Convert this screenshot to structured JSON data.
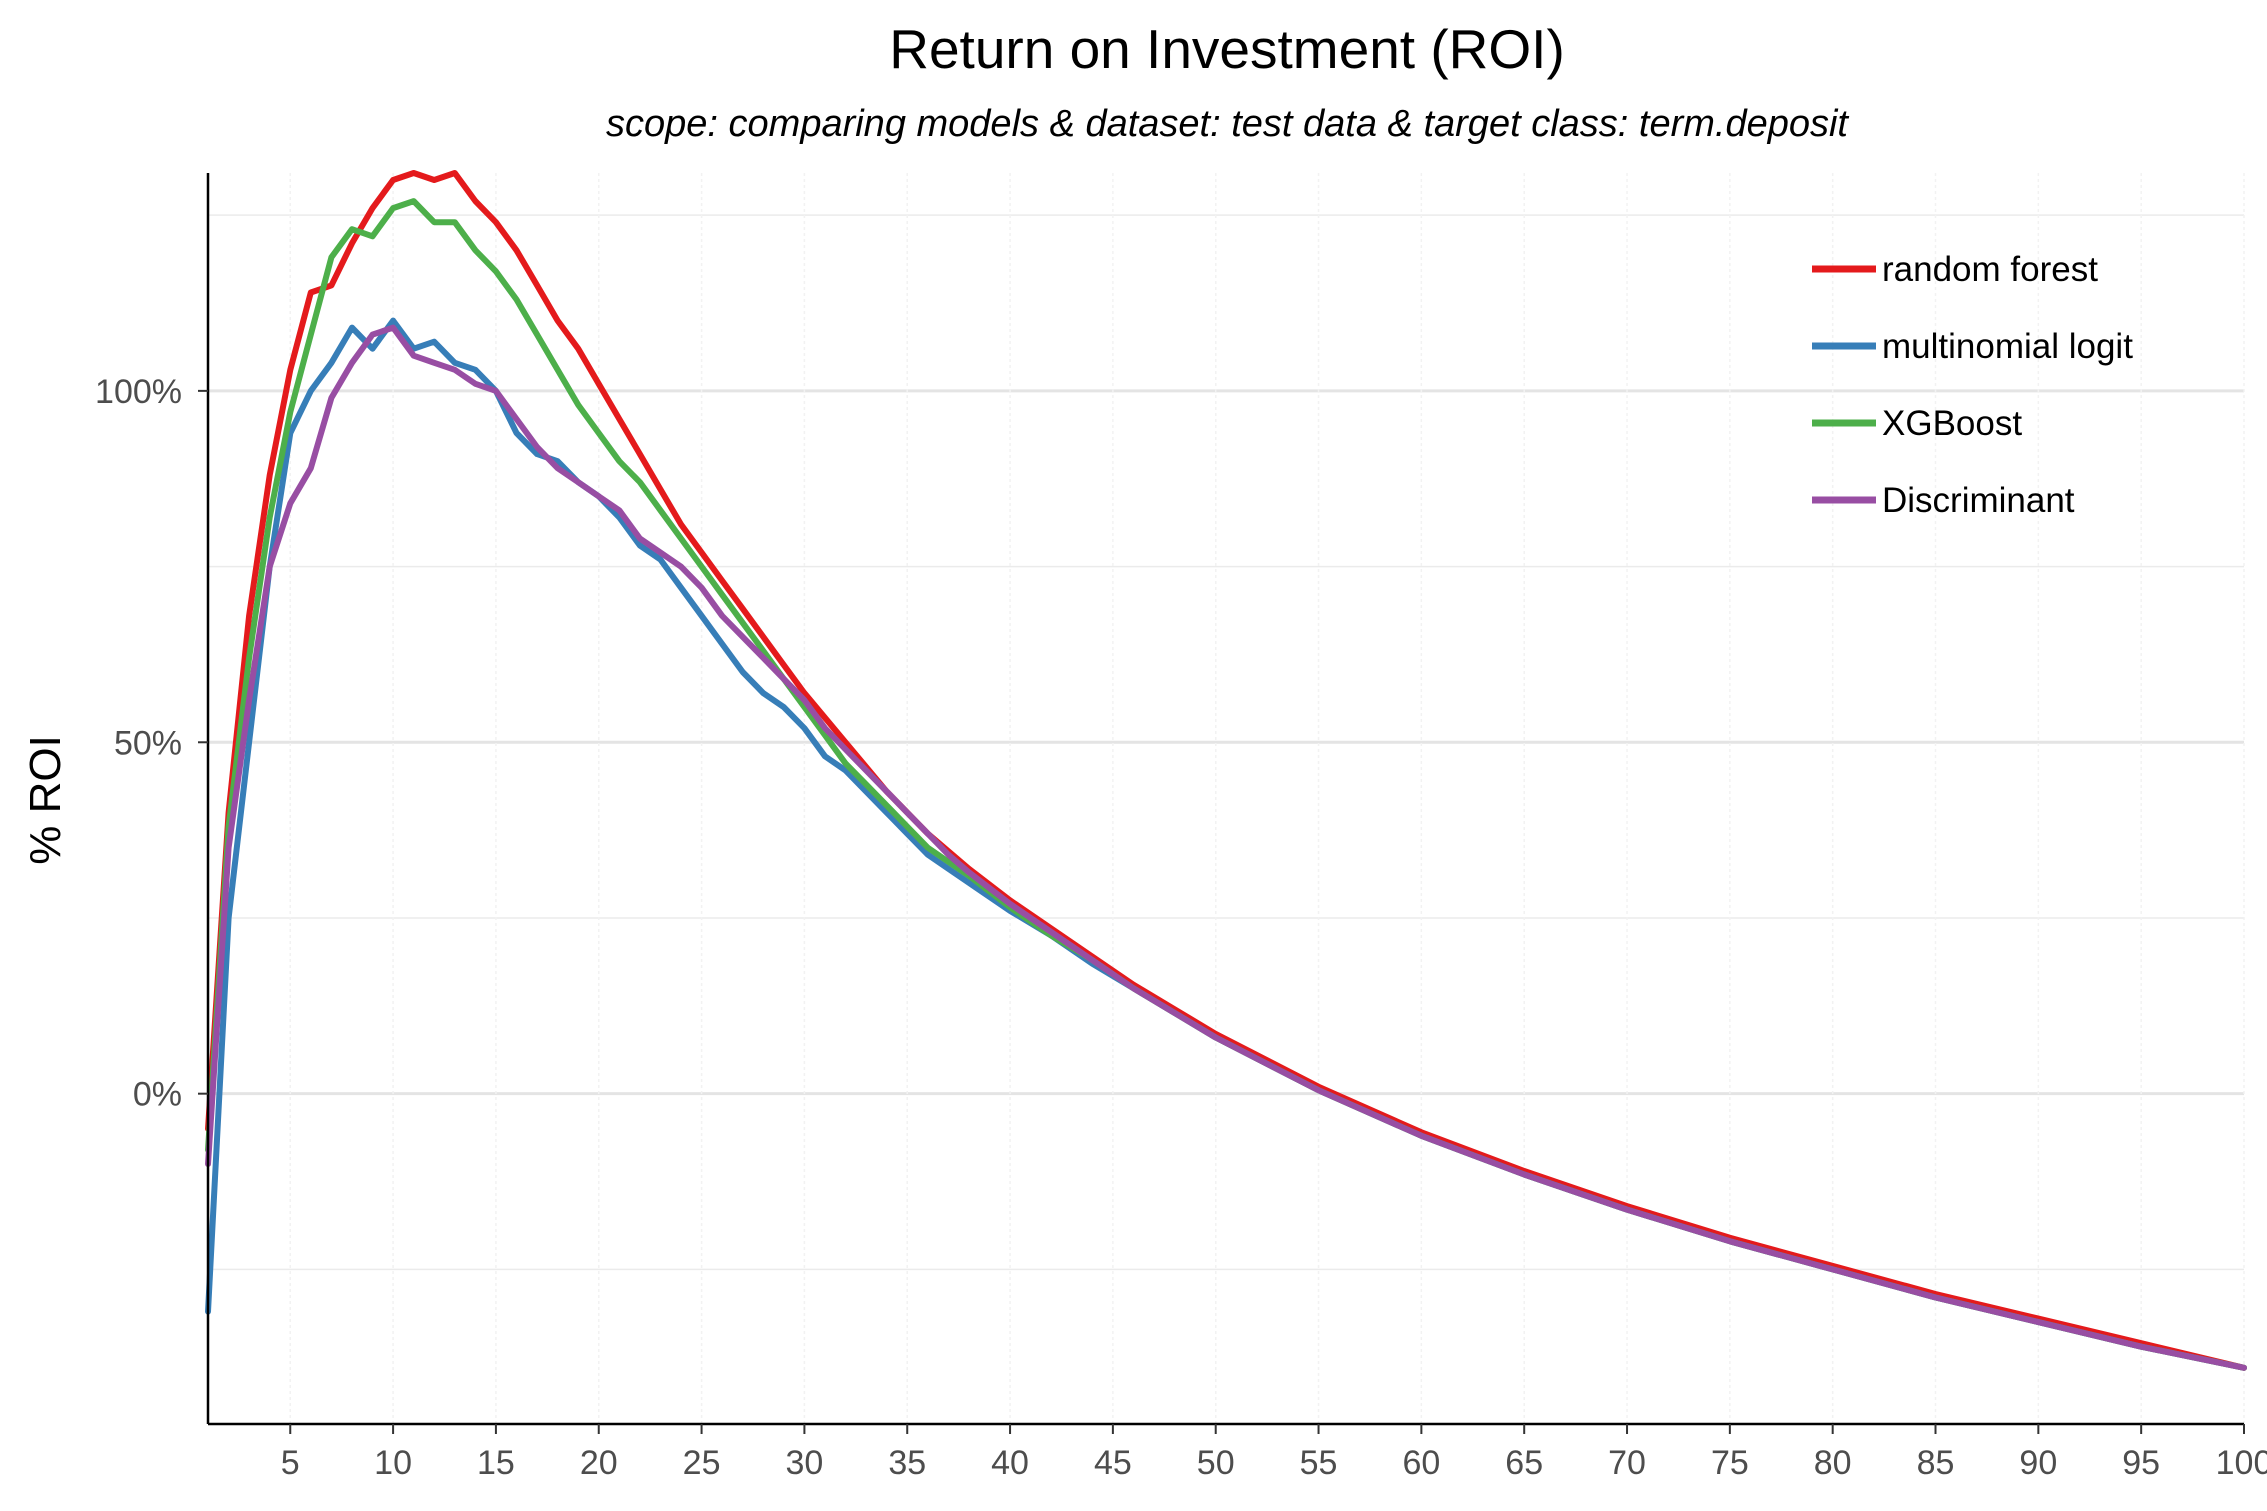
{
  "chart_data": {
    "type": "line",
    "title": "Return on Investment (ROI)",
    "subtitle": "scope: comparing models & dataset: test data & target class: term.deposit",
    "xlabel": "",
    "ylabel": "% ROI",
    "xlim": [
      1,
      100
    ],
    "ylim": [
      -47,
      131
    ],
    "x_ticks": [
      5,
      10,
      15,
      20,
      25,
      30,
      35,
      40,
      45,
      50,
      55,
      60,
      65,
      70,
      75,
      80,
      85,
      90,
      95,
      100
    ],
    "x_tick_labels": [
      "5",
      "10",
      "15",
      "20",
      "25",
      "30",
      "35",
      "40",
      "45",
      "50",
      "55",
      "60",
      "65",
      "70",
      "75",
      "80",
      "85",
      "90",
      "95",
      "100"
    ],
    "y_ticks": [
      0,
      50,
      100
    ],
    "y_tick_labels": [
      "0%",
      "50%",
      "100%"
    ],
    "y_minor_ticks": [
      -25,
      25,
      75,
      125
    ],
    "grid": true,
    "legend_position": "top-right",
    "series": [
      {
        "name": "random forest",
        "color": "#E41A1C",
        "points": [
          [
            1,
            -5
          ],
          [
            2,
            40
          ],
          [
            3,
            68
          ],
          [
            4,
            88
          ],
          [
            5,
            103
          ],
          [
            6,
            114
          ],
          [
            7,
            115
          ],
          [
            8,
            121
          ],
          [
            9,
            126
          ],
          [
            10,
            130
          ],
          [
            11,
            131
          ],
          [
            12,
            130
          ],
          [
            13,
            131
          ],
          [
            14,
            127
          ],
          [
            15,
            124
          ],
          [
            16,
            120
          ],
          [
            17,
            115
          ],
          [
            18,
            110
          ],
          [
            19,
            106
          ],
          [
            20,
            101
          ],
          [
            21,
            96
          ],
          [
            22,
            91
          ],
          [
            23,
            86
          ],
          [
            24,
            81
          ],
          [
            25,
            77
          ],
          [
            26,
            73
          ],
          [
            27,
            69
          ],
          [
            28,
            65
          ],
          [
            29,
            61
          ],
          [
            30,
            57
          ],
          [
            32,
            50
          ],
          [
            34,
            43
          ],
          [
            36,
            37
          ],
          [
            38,
            32
          ],
          [
            40,
            27.5
          ],
          [
            42,
            23.5
          ],
          [
            44,
            19.5
          ],
          [
            46,
            15.5
          ],
          [
            48,
            12
          ],
          [
            50,
            8.5
          ],
          [
            55,
            1
          ],
          [
            60,
            -5.5
          ],
          [
            65,
            -11
          ],
          [
            70,
            -16
          ],
          [
            75,
            -20.5
          ],
          [
            80,
            -24.5
          ],
          [
            85,
            -28.5
          ],
          [
            90,
            -32
          ],
          [
            95,
            -35.5
          ],
          [
            100,
            -39
          ]
        ]
      },
      {
        "name": "multinomial logit",
        "color": "#377EB8",
        "points": [
          [
            1,
            -31
          ],
          [
            2,
            25
          ],
          [
            3,
            50
          ],
          [
            4,
            75
          ],
          [
            5,
            94
          ],
          [
            6,
            100
          ],
          [
            7,
            104
          ],
          [
            8,
            109
          ],
          [
            9,
            106
          ],
          [
            10,
            110
          ],
          [
            11,
            106
          ],
          [
            12,
            107
          ],
          [
            13,
            104
          ],
          [
            14,
            103
          ],
          [
            15,
            100
          ],
          [
            16,
            94
          ],
          [
            17,
            91
          ],
          [
            18,
            90
          ],
          [
            19,
            87
          ],
          [
            20,
            85
          ],
          [
            21,
            82
          ],
          [
            22,
            78
          ],
          [
            23,
            76
          ],
          [
            24,
            72
          ],
          [
            25,
            68
          ],
          [
            26,
            64
          ],
          [
            27,
            60
          ],
          [
            28,
            57
          ],
          [
            29,
            55
          ],
          [
            30,
            52
          ],
          [
            31,
            48
          ],
          [
            32,
            46
          ],
          [
            33,
            43
          ],
          [
            34,
            40
          ],
          [
            35,
            37
          ],
          [
            36,
            34
          ],
          [
            37,
            32
          ],
          [
            38,
            30
          ],
          [
            40,
            26
          ],
          [
            42,
            22.5
          ],
          [
            44,
            18.5
          ],
          [
            46,
            15
          ],
          [
            48,
            11.5
          ],
          [
            50,
            8
          ],
          [
            55,
            0.5
          ],
          [
            60,
            -6
          ],
          [
            65,
            -11.5
          ],
          [
            70,
            -16.5
          ],
          [
            75,
            -21
          ],
          [
            80,
            -25
          ],
          [
            85,
            -29
          ],
          [
            90,
            -32.5
          ],
          [
            95,
            -36
          ],
          [
            100,
            -39
          ]
        ]
      },
      {
        "name": "XGBoost",
        "color": "#4DAF4A",
        "points": [
          [
            1,
            -8
          ],
          [
            2,
            38
          ],
          [
            3,
            62
          ],
          [
            4,
            82
          ],
          [
            5,
            97
          ],
          [
            6,
            108
          ],
          [
            7,
            119
          ],
          [
            8,
            123
          ],
          [
            9,
            122
          ],
          [
            10,
            126
          ],
          [
            11,
            127
          ],
          [
            12,
            124
          ],
          [
            13,
            124
          ],
          [
            14,
            120
          ],
          [
            15,
            117
          ],
          [
            16,
            113
          ],
          [
            17,
            108
          ],
          [
            18,
            103
          ],
          [
            19,
            98
          ],
          [
            20,
            94
          ],
          [
            21,
            90
          ],
          [
            22,
            87
          ],
          [
            23,
            83
          ],
          [
            24,
            79
          ],
          [
            25,
            75
          ],
          [
            26,
            71
          ],
          [
            27,
            67
          ],
          [
            28,
            63
          ],
          [
            29,
            59
          ],
          [
            30,
            55
          ],
          [
            31,
            51
          ],
          [
            32,
            47
          ],
          [
            33,
            44
          ],
          [
            34,
            41
          ],
          [
            35,
            38
          ],
          [
            36,
            35
          ],
          [
            37,
            33
          ],
          [
            38,
            31
          ],
          [
            40,
            26.5
          ],
          [
            42,
            22.5
          ],
          [
            44,
            19
          ],
          [
            46,
            15
          ],
          [
            48,
            11.5
          ],
          [
            50,
            8
          ],
          [
            55,
            0.5
          ],
          [
            60,
            -6
          ],
          [
            65,
            -11.5
          ],
          [
            70,
            -16.5
          ],
          [
            75,
            -21
          ],
          [
            80,
            -25
          ],
          [
            85,
            -29
          ],
          [
            90,
            -32.5
          ],
          [
            95,
            -36
          ],
          [
            100,
            -39
          ]
        ]
      },
      {
        "name": "Discriminant",
        "color": "#984EA3",
        "points": [
          [
            1,
            -10
          ],
          [
            2,
            35
          ],
          [
            3,
            56
          ],
          [
            4,
            75
          ],
          [
            5,
            84
          ],
          [
            6,
            89
          ],
          [
            7,
            99
          ],
          [
            8,
            104
          ],
          [
            9,
            108
          ],
          [
            10,
            109
          ],
          [
            11,
            105
          ],
          [
            12,
            104
          ],
          [
            13,
            103
          ],
          [
            14,
            101
          ],
          [
            15,
            100
          ],
          [
            16,
            96
          ],
          [
            17,
            92
          ],
          [
            18,
            89
          ],
          [
            19,
            87
          ],
          [
            20,
            85
          ],
          [
            21,
            83
          ],
          [
            22,
            79
          ],
          [
            23,
            77
          ],
          [
            24,
            75
          ],
          [
            25,
            72
          ],
          [
            26,
            68
          ],
          [
            27,
            65
          ],
          [
            28,
            62
          ],
          [
            29,
            59
          ],
          [
            30,
            56
          ],
          [
            31,
            52
          ],
          [
            32,
            49
          ],
          [
            33,
            46
          ],
          [
            34,
            43
          ],
          [
            35,
            40
          ],
          [
            36,
            37
          ],
          [
            37,
            34
          ],
          [
            38,
            31.5
          ],
          [
            40,
            27
          ],
          [
            42,
            23
          ],
          [
            44,
            19
          ],
          [
            46,
            15
          ],
          [
            48,
            11.5
          ],
          [
            50,
            8
          ],
          [
            55,
            0.5
          ],
          [
            60,
            -6
          ],
          [
            65,
            -11.5
          ],
          [
            70,
            -16.5
          ],
          [
            75,
            -21
          ],
          [
            80,
            -25
          ],
          [
            85,
            -29
          ],
          [
            90,
            -32.5
          ],
          [
            95,
            -36
          ],
          [
            100,
            -39
          ]
        ]
      }
    ]
  }
}
